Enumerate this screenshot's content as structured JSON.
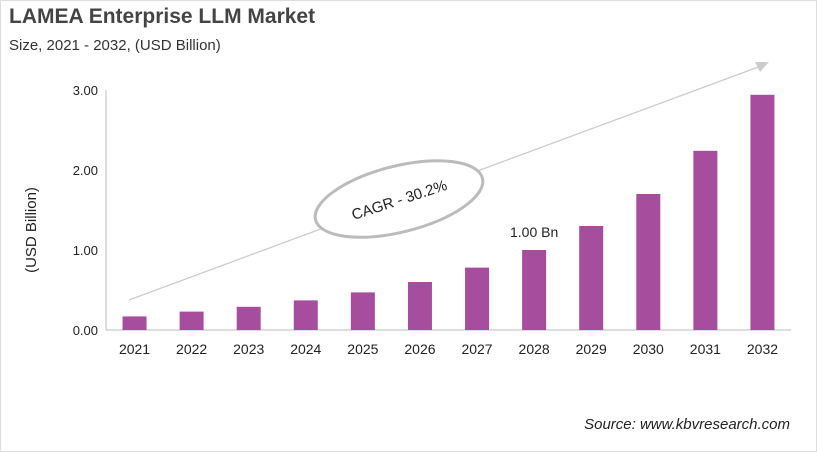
{
  "title": "LAMEA Enterprise LLM Market",
  "subtitle": "Size, 2021 - 2032, (USD Billion)",
  "source": "Source: www.kbvresearch.com",
  "chart_data": {
    "type": "bar",
    "categories": [
      "2021",
      "2022",
      "2023",
      "2024",
      "2025",
      "2026",
      "2027",
      "2028",
      "2029",
      "2030",
      "2031",
      "2032"
    ],
    "values": [
      0.17,
      0.23,
      0.29,
      0.37,
      0.47,
      0.6,
      0.78,
      1.0,
      1.3,
      1.7,
      2.24,
      2.94
    ],
    "ylabel": "(USD Billion)",
    "ylim": [
      0,
      3
    ],
    "yticks": [
      "0.00",
      "1.00",
      "2.00",
      "3.00"
    ],
    "grid": false,
    "bar_color": "#a64d9e",
    "annotations": {
      "data_label": "1.00 Bn",
      "data_label_category": "2028",
      "cagr": "CAGR - 30.2%"
    }
  }
}
